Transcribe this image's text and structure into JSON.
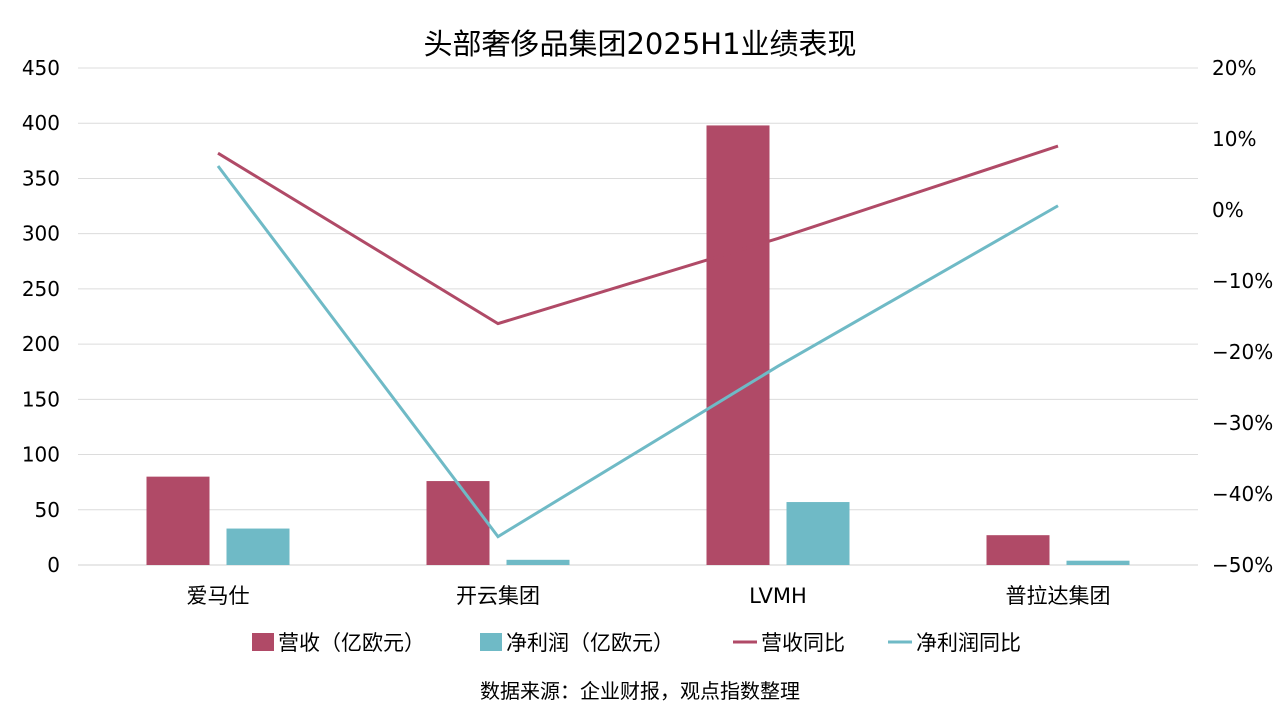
{
  "chart_data": {
    "type": "bar+line",
    "title": "头部奢侈品集团2025H1业绩表现",
    "categories": [
      "爱马仕",
      "开云集团",
      "LVMH",
      "普拉达集团"
    ],
    "series": [
      {
        "name": "营收（亿欧元）",
        "type": "bar",
        "axis": "left",
        "color": "#B04A67",
        "values": [
          80,
          76,
          398,
          27
        ]
      },
      {
        "name": "净利润（亿欧元）",
        "type": "bar",
        "axis": "left",
        "color": "#6FBAC6",
        "values": [
          33,
          4.7,
          57,
          3.9
        ]
      },
      {
        "name": "营收同比",
        "type": "line",
        "axis": "right",
        "color": "#B04A67",
        "values": [
          8,
          -16,
          -4,
          9
        ]
      },
      {
        "name": "净利润同比",
        "type": "line",
        "axis": "right",
        "color": "#6FBAC6",
        "values": [
          6.2,
          -46,
          -22,
          0.6
        ]
      }
    ],
    "left_axis": {
      "range": [
        0,
        450
      ],
      "ticks": [
        "0",
        "50",
        "100",
        "150",
        "200",
        "250",
        "300",
        "350",
        "400",
        "450"
      ]
    },
    "right_axis": {
      "range": [
        -50,
        20
      ],
      "unit": "%",
      "ticks": [
        "−50%",
        "−40%",
        "−30%",
        "−20%",
        "−10%",
        "0%",
        "10%",
        "20%"
      ]
    },
    "grid": true,
    "legend_position": "bottom",
    "source": "数据来源：企业财报，观点指数整理"
  }
}
